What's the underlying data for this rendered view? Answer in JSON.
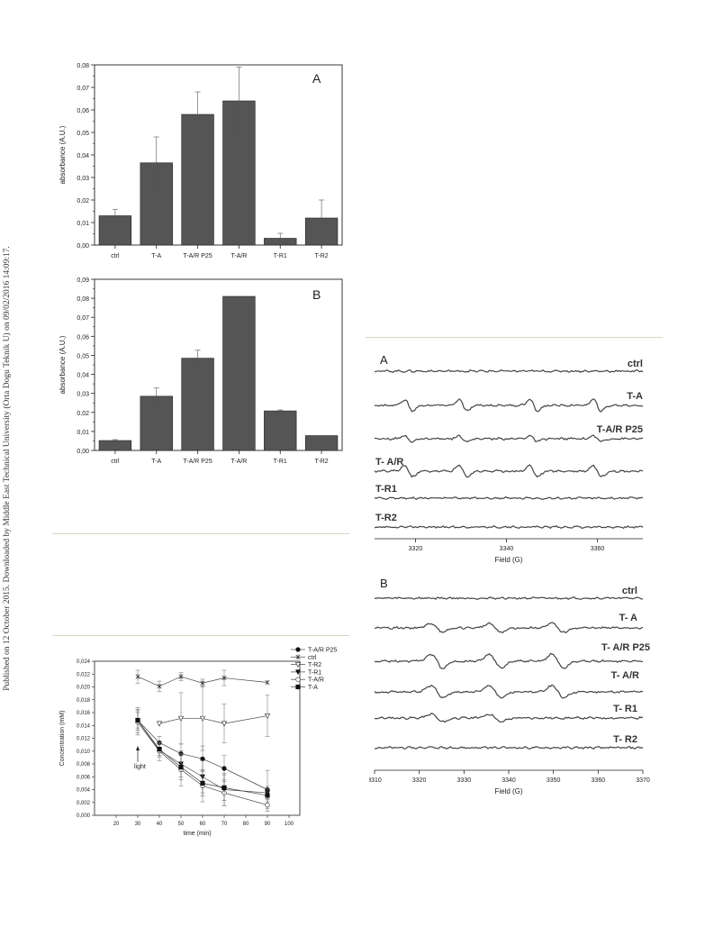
{
  "side_note": "Published on 12 October 2015. Downloaded by Middle East Technical University (Orta Dogu Teknik U) on 09/02/2016 14:09:17.",
  "chart_data": [
    {
      "type": "bar",
      "panel_label": "A",
      "title": "",
      "ylabel": "absorbance  (A.U.)",
      "xlabel": "",
      "categories": [
        "ctrl",
        "T-A",
        "T-A/R P25",
        "T-A/R",
        "T-R1",
        "T-R2"
      ],
      "values": [
        0.013,
        0.0365,
        0.058,
        0.064,
        0.003,
        0.012
      ],
      "errors": [
        0.0028,
        0.0115,
        0.01,
        0.015,
        0.0022,
        0.008
      ],
      "ylim": [
        0,
        0.08
      ],
      "yticks": [
        "0,00",
        "0,01",
        "0,02",
        "0,03",
        "0,04",
        "0,05",
        "0,06",
        "0,07",
        "0,08"
      ],
      "bar_color": "#555555"
    },
    {
      "type": "bar",
      "panel_label": "B",
      "title": "",
      "ylabel": "absorbance (A.U.)",
      "xlabel": "",
      "categories": [
        "ctrl",
        "T-A",
        "T-A/R P25",
        "T-A/R",
        "T-R1",
        "T-R2"
      ],
      "values": [
        0.0052,
        0.0285,
        0.0485,
        0.081,
        0.0208,
        0.0078
      ],
      "errors": [
        0.0005,
        0.0043,
        0.0042,
        0,
        0.0005,
        0
      ],
      "ylim": [
        0,
        0.09
      ],
      "yticks": [
        "0,00",
        "0,01",
        "0,02",
        "0,03",
        "0,04",
        "0,05",
        "0,06",
        "0,07",
        "0,08",
        "0,09"
      ],
      "bar_color": "#555555"
    },
    {
      "type": "line",
      "panel_label": "",
      "title": "",
      "xlabel": "time (min)",
      "ylabel": "Concentration (mM)",
      "xlim": [
        10,
        105
      ],
      "ylim": [
        0,
        0.024
      ],
      "xticks": [
        "20",
        "30",
        "40",
        "50",
        "60",
        "70",
        "80",
        "90",
        "100"
      ],
      "yticks": [
        "0,000",
        "0,002",
        "0,004",
        "0,006",
        "0,008",
        "0,010",
        "0,012",
        "0,014",
        "0,016",
        "0,018",
        "0,020",
        "0,022",
        "0,024"
      ],
      "annotation": "light",
      "legend_position": "top-right",
      "x": [
        30,
        40,
        50,
        60,
        70,
        90
      ],
      "series": [
        {
          "name": "T-A/R P25",
          "marker": "filled-circle",
          "values": [
            0.0148,
            0.0113,
            0.0096,
            0.0088,
            0.0073,
            0.004
          ],
          "errors": [
            0.0012,
            0.001,
            0.0015,
            0.002,
            0.002,
            0.003
          ]
        },
        {
          "name": "ctrl",
          "marker": "star",
          "values": [
            0.0216,
            0.0201,
            0.0216,
            0.0206,
            0.0214,
            0.0207
          ],
          "errors": [
            0.001,
            0.0008,
            0.0006,
            0.0006,
            0.0012,
            0
          ]
        },
        {
          "name": "T-R2",
          "marker": "open-triangle-down",
          "values": [
            null,
            0.0143,
            0.0151,
            0.0151,
            0.0143,
            0.0155
          ],
          "errors": [
            0,
            0,
            0.004,
            0.005,
            0.003,
            0.0032
          ]
        },
        {
          "name": "T-R1",
          "marker": "filled-triangle-down",
          "values": [
            0.0148,
            0.0101,
            0.008,
            0.006,
            0.004,
            0.0035
          ],
          "errors": [
            0.002,
            0.001,
            0.002,
            0.0025,
            0.0025,
            0.001
          ]
        },
        {
          "name": "T-A/R",
          "marker": "open-circle",
          "values": [
            0.0145,
            0.01,
            0.0071,
            0.0046,
            0.0035,
            0.0016
          ],
          "errors": [
            0.002,
            0.0015,
            0.0025,
            0.0025,
            0.002,
            0.001
          ]
        },
        {
          "name": "T-A",
          "marker": "filled-square",
          "values": [
            0.0148,
            0.0103,
            0.0075,
            0.005,
            0.0043,
            0.0031
          ],
          "errors": [
            0.0015,
            0.001,
            0.002,
            0.002,
            0.002,
            0.001
          ]
        }
      ]
    },
    {
      "type": "line",
      "panel_label": "A",
      "title": "",
      "xlabel": "Field (G)",
      "ylabel": "",
      "xlim": [
        3311,
        3370
      ],
      "xticks": [
        "3320",
        "3340",
        "3360"
      ],
      "series": [
        {
          "name": "ctrl",
          "line_positions": []
        },
        {
          "name": "T-A",
          "line_positions": [
            3318.5,
            3330.5,
            3346,
            3360
          ]
        },
        {
          "name": "T-A/R P25",
          "line_positions": [
            3318.5,
            3330.5,
            3346,
            3360
          ]
        },
        {
          "name": "T- A/R",
          "line_positions": [
            3318.5,
            3330.5,
            3346,
            3360
          ]
        },
        {
          "name": "T-R1",
          "line_positions": []
        },
        {
          "name": "T-R2",
          "line_positions": []
        }
      ]
    },
    {
      "type": "line",
      "panel_label": "B",
      "title": "",
      "xlabel": "Field (G)",
      "ylabel": "",
      "xlim": [
        3310,
        3370
      ],
      "xticks": [
        "3310",
        "3320",
        "3330",
        "3340",
        "3350",
        "3360",
        "3370"
      ],
      "series": [
        {
          "name": "ctrl",
          "line_positions": []
        },
        {
          "name": "T- A",
          "line_positions": [
            3324,
            3337,
            3351
          ]
        },
        {
          "name": "T- A/R P25",
          "line_positions": [
            3324,
            3337,
            3351
          ]
        },
        {
          "name": "T- A/R",
          "line_positions": [
            3324,
            3337,
            3351
          ]
        },
        {
          "name": "T- R1",
          "line_positions": [
            3324,
            3337
          ]
        },
        {
          "name": "T- R2",
          "line_positions": []
        }
      ]
    }
  ]
}
